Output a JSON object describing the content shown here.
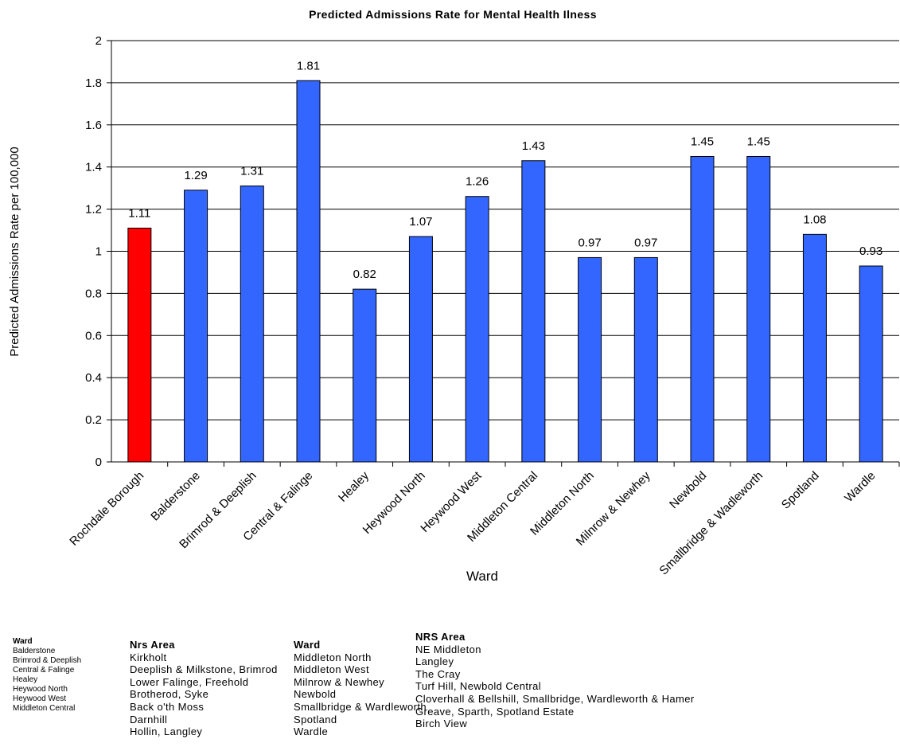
{
  "chart_data": {
    "type": "bar",
    "title": "Predicted Admissions Rate for Mental Health Ilness",
    "xlabel": "Ward",
    "ylabel": "Predicted Admissions Rate per 100,000",
    "ylim": [
      0,
      2
    ],
    "yticks": [
      "0",
      "0.2",
      "0.4",
      "0.6",
      "0.8",
      "1",
      "1.2",
      "1.4",
      "1.6",
      "1.8",
      "2"
    ],
    "grid": true,
    "legend": "none",
    "categories": [
      "Rochdale Borough",
      "Balderstone",
      "Brimrod & Deeplish",
      "Central & Falinge",
      "Healey",
      "Heywood North",
      "Heywood West",
      "Middleton Central",
      "Middleton North",
      "Milnrow & Newhey",
      "Newbold",
      "Smallbridge & Wadleworth",
      "Spotland",
      "Wardle"
    ],
    "values": [
      1.11,
      1.29,
      1.31,
      1.81,
      0.82,
      1.07,
      1.26,
      1.43,
      0.97,
      0.97,
      1.45,
      1.45,
      1.08,
      0.93
    ],
    "data_labels": [
      "1.11",
      "1.29",
      "1.31",
      "1.81",
      "0.82",
      "1.07",
      "1.26",
      "1.43",
      "0.97",
      "0.97",
      "1.45",
      "1.45",
      "1.08",
      "0.93"
    ],
    "colors": {
      "highlight": "#ff0000",
      "bar": "#3366ff",
      "grid": "#000000"
    }
  },
  "table": {
    "col1": {
      "header": "Ward",
      "items": [
        "Balderstone",
        "Brimrod & Deeplish",
        "Central & Falinge",
        "Healey",
        "Heywood North",
        "Heywood West",
        "Middleton Central"
      ]
    },
    "col2": {
      "header": "Nrs Area",
      "items": [
        "Kirkholt",
        "Deeplish & Milkstone, Brimrod",
        "Lower Falinge, Freehold",
        "Brotherod, Syke",
        "Back o'th Moss",
        "Darnhill",
        "Hollin, Langley"
      ]
    },
    "col3": {
      "header": "Ward",
      "items": [
        "Middleton North",
        "Middleton West",
        "Milnrow & Newhey",
        "Newbold",
        "Smallbridge & Wardleworth",
        "Spotland",
        "Wardle"
      ]
    },
    "col4": {
      "header": "NRS Area",
      "items": [
        "NE Middleton",
        "Langley",
        "The Cray",
        "Turf Hill, Newbold Central",
        "Cloverhall & Bellshill, Smallbridge, Wardleworth & Hamer",
        "Greave, Sparth, Spotland Estate",
        "Birch View"
      ]
    }
  }
}
